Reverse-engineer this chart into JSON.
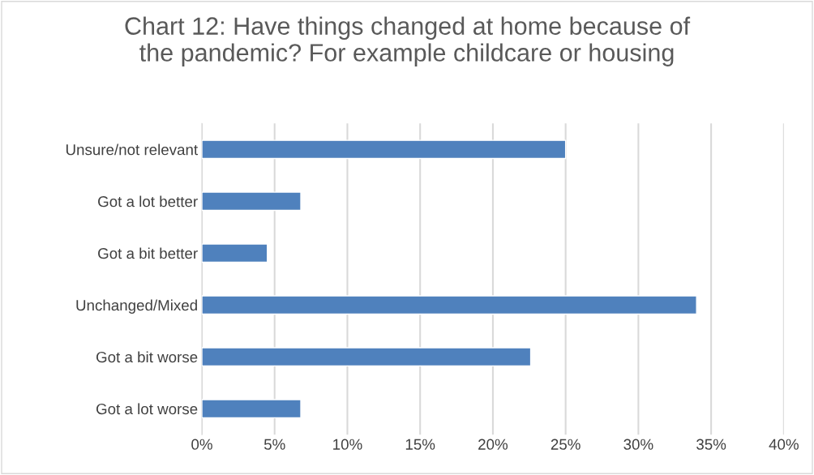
{
  "chart_data": {
    "type": "bar",
    "orientation": "horizontal",
    "title": "Chart 12: Have things changed at home because of\nthe pandemic? For example childcare or housing",
    "categories": [
      "Unsure/not relevant",
      "Got a lot better",
      "Got a bit better",
      "Unchanged/Mixed",
      "Got a bit worse",
      "Got a lot worse"
    ],
    "values": [
      25,
      6.8,
      4.5,
      34,
      22.6,
      6.8
    ],
    "color": "#4f81bd",
    "grid": "x",
    "xlim": [
      0,
      40
    ],
    "xticks": [
      {
        "value": 0,
        "label": "0%"
      },
      {
        "value": 5,
        "label": "5%"
      },
      {
        "value": 10,
        "label": "10%"
      },
      {
        "value": 15,
        "label": "15%"
      },
      {
        "value": 20,
        "label": "20%"
      },
      {
        "value": 25,
        "label": "25%"
      },
      {
        "value": 30,
        "label": "30%"
      },
      {
        "value": 35,
        "label": "35%"
      },
      {
        "value": 40,
        "label": "40%"
      }
    ]
  }
}
